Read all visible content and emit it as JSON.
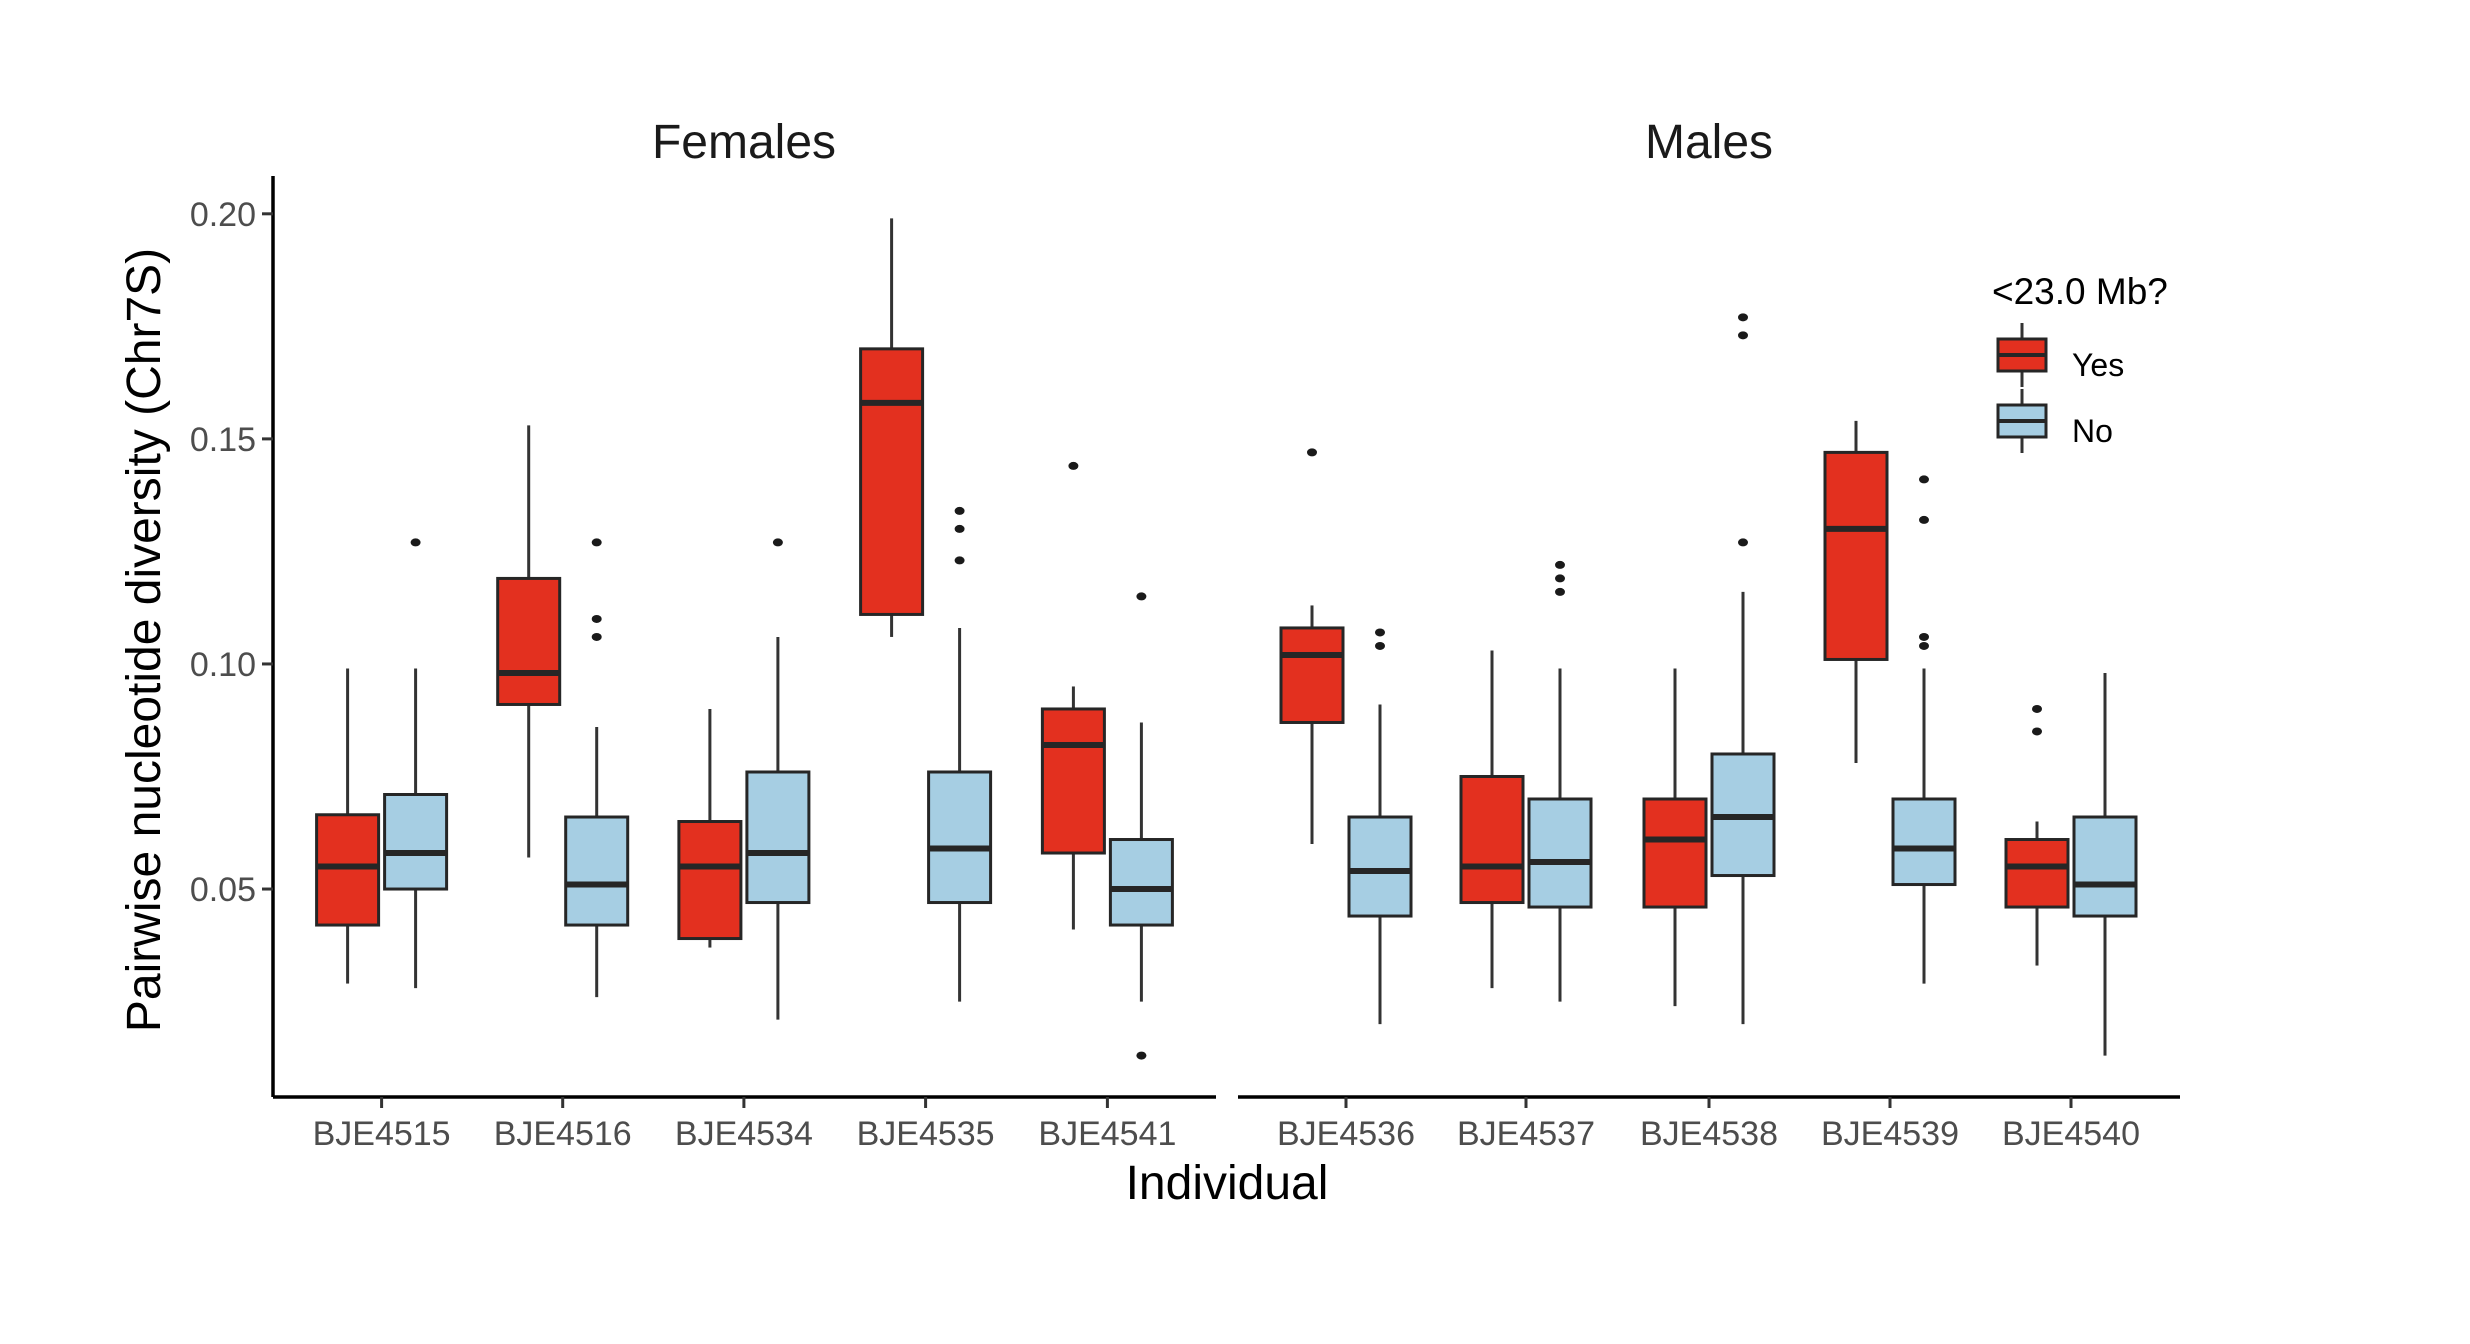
{
  "chart_data": {
    "type": "boxplot",
    "title": "",
    "xlabel": "Individual",
    "ylabel": "Pairwise nucleotide diversity (Chr7S)",
    "ylim": [
      0.0038,
      0.2084
    ],
    "yticks": [
      0.05,
      0.1,
      0.15,
      0.2
    ],
    "ytick_labels": [
      "0.05",
      "0.10",
      "0.15",
      "0.20"
    ],
    "grid": false,
    "legend": {
      "title": "<23.0 Mb?",
      "position": "right",
      "entries": [
        {
          "label": "Yes",
          "color": "#e3301f"
        },
        {
          "label": "No",
          "color": "#a6cee3"
        }
      ]
    },
    "groups": [
      "Yes",
      "No"
    ],
    "facets": [
      {
        "title": "Females",
        "categories": [
          "BJE4515",
          "BJE4516",
          "BJE4534",
          "BJE4535",
          "BJE4541"
        ],
        "boxes": {
          "Yes": [
            {
              "min": 0.029,
              "q1": 0.042,
              "median": 0.055,
              "q3": 0.0665,
              "max": 0.099,
              "outliers": []
            },
            {
              "min": 0.057,
              "q1": 0.091,
              "median": 0.098,
              "q3": 0.119,
              "max": 0.153,
              "outliers": []
            },
            {
              "min": 0.037,
              "q1": 0.039,
              "median": 0.055,
              "q3": 0.065,
              "max": 0.09,
              "outliers": []
            },
            {
              "min": 0.106,
              "q1": 0.111,
              "median": 0.158,
              "q3": 0.17,
              "max": 0.199,
              "outliers": []
            },
            {
              "min": 0.041,
              "q1": 0.058,
              "median": 0.082,
              "q3": 0.09,
              "max": 0.095,
              "outliers": [
                0.144
              ]
            }
          ],
          "No": [
            {
              "min": 0.028,
              "q1": 0.05,
              "median": 0.058,
              "q3": 0.071,
              "max": 0.099,
              "outliers": [
                0.127
              ]
            },
            {
              "min": 0.026,
              "q1": 0.042,
              "median": 0.051,
              "q3": 0.066,
              "max": 0.086,
              "outliers": [
                0.127,
                0.11,
                0.106
              ]
            },
            {
              "min": 0.021,
              "q1": 0.047,
              "median": 0.058,
              "q3": 0.076,
              "max": 0.106,
              "outliers": [
                0.127
              ]
            },
            {
              "min": 0.025,
              "q1": 0.047,
              "median": 0.059,
              "q3": 0.076,
              "max": 0.108,
              "outliers": [
                0.134,
                0.13,
                0.123
              ]
            },
            {
              "min": 0.025,
              "q1": 0.042,
              "median": 0.05,
              "q3": 0.061,
              "max": 0.087,
              "outliers": [
                0.115,
                0.013
              ]
            }
          ]
        }
      },
      {
        "title": "Males",
        "categories": [
          "BJE4536",
          "BJE4537",
          "BJE4538",
          "BJE4539",
          "BJE4540"
        ],
        "boxes": {
          "Yes": [
            {
              "min": 0.06,
              "q1": 0.087,
              "median": 0.102,
              "q3": 0.108,
              "max": 0.113,
              "outliers": [
                0.147
              ]
            },
            {
              "min": 0.028,
              "q1": 0.047,
              "median": 0.055,
              "q3": 0.075,
              "max": 0.103,
              "outliers": []
            },
            {
              "min": 0.024,
              "q1": 0.046,
              "median": 0.061,
              "q3": 0.07,
              "max": 0.099,
              "outliers": []
            },
            {
              "min": 0.078,
              "q1": 0.101,
              "median": 0.13,
              "q3": 0.147,
              "max": 0.154,
              "outliers": []
            },
            {
              "min": 0.033,
              "q1": 0.046,
              "median": 0.055,
              "q3": 0.061,
              "max": 0.065,
              "outliers": [
                0.09,
                0.085
              ]
            }
          ],
          "No": [
            {
              "min": 0.02,
              "q1": 0.044,
              "median": 0.054,
              "q3": 0.066,
              "max": 0.091,
              "outliers": [
                0.107,
                0.104
              ]
            },
            {
              "min": 0.025,
              "q1": 0.046,
              "median": 0.056,
              "q3": 0.07,
              "max": 0.099,
              "outliers": [
                0.122,
                0.119,
                0.116
              ]
            },
            {
              "min": 0.02,
              "q1": 0.053,
              "median": 0.066,
              "q3": 0.08,
              "max": 0.116,
              "outliers": [
                0.177,
                0.173,
                0.127
              ]
            },
            {
              "min": 0.029,
              "q1": 0.051,
              "median": 0.059,
              "q3": 0.07,
              "max": 0.099,
              "outliers": [
                0.141,
                0.132,
                0.106,
                0.104
              ]
            },
            {
              "min": 0.013,
              "q1": 0.044,
              "median": 0.051,
              "q3": 0.066,
              "max": 0.098,
              "outliers": []
            }
          ]
        }
      }
    ]
  }
}
